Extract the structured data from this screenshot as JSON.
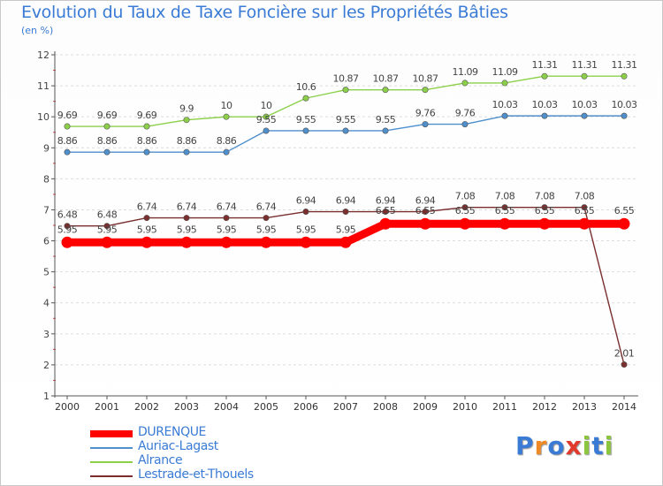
{
  "header": {
    "title": "Evolution du Taux de Taxe Foncière sur les Propriétés Bâties",
    "unit": "(en %)"
  },
  "logo": {
    "letters": [
      "P",
      "r",
      "o",
      "x",
      "i",
      "t",
      "i"
    ],
    "colors": [
      "#3a7bd5",
      "#f08a24",
      "#3a7bd5",
      "#e23b2e",
      "#8cc63f",
      "#3a7bd5",
      "#8cc63f"
    ]
  },
  "chart_data": {
    "type": "line",
    "title": "Evolution du Taux de Taxe Foncière sur les Propriétés Bâties",
    "ylabel": "(en %)",
    "xlabel": "",
    "x": [
      2000,
      2001,
      2002,
      2003,
      2004,
      2005,
      2006,
      2007,
      2008,
      2009,
      2010,
      2011,
      2012,
      2013,
      2014
    ],
    "ylim": [
      1,
      12
    ],
    "yticks": [
      1,
      2,
      3,
      4,
      5,
      6,
      7,
      8,
      9,
      10,
      11,
      12
    ],
    "grid": "horizontal dashed",
    "legend_position": "bottom-left",
    "series": [
      {
        "name": "DURENQUE",
        "color": "#ff0000",
        "values": [
          5.95,
          5.95,
          5.95,
          5.95,
          5.95,
          5.95,
          5.95,
          5.95,
          6.55,
          6.55,
          6.55,
          6.55,
          6.55,
          6.55,
          6.55
        ],
        "labels": [
          "5.95",
          "5.95",
          "5.95",
          "5.95",
          "5.95",
          "5.95",
          "5.95",
          "5.95",
          "6.55",
          "6.55",
          "6.55",
          "6.55",
          "6.55",
          "6.55",
          "6.55"
        ]
      },
      {
        "name": "Auriac-Lagast",
        "color": "#4f8fcc",
        "values": [
          8.86,
          8.86,
          8.86,
          8.86,
          8.86,
          9.55,
          9.55,
          9.55,
          9.55,
          9.76,
          9.76,
          10.03,
          10.03,
          10.03,
          10.03
        ],
        "labels": [
          "8.86",
          "8.86",
          "8.86",
          "8.86",
          "8.86",
          "9.55",
          "9.55",
          "9.55",
          "9.55",
          "9.76",
          "9.76",
          "10.03",
          "10.03",
          "10.03",
          "10.03"
        ]
      },
      {
        "name": "Alrance",
        "color": "#8cd04a",
        "values": [
          9.69,
          9.69,
          9.69,
          9.9,
          10,
          10,
          10.6,
          10.87,
          10.87,
          10.87,
          11.09,
          11.09,
          11.31,
          11.31,
          11.31
        ],
        "labels": [
          "9.69",
          "9.69",
          "9.69",
          "9.9",
          "10",
          "10",
          "10.6",
          "10.87",
          "10.87",
          "10.87",
          "11.09",
          "11.09",
          "11.31",
          "11.31",
          "11.31"
        ]
      },
      {
        "name": "Lestrade-et-Thouels",
        "color": "#7a2e2e",
        "values": [
          6.48,
          6.48,
          6.74,
          6.74,
          6.74,
          6.74,
          6.94,
          6.94,
          6.94,
          6.94,
          7.08,
          7.08,
          7.08,
          7.08,
          2.01
        ],
        "labels": [
          "6.48",
          "6.48",
          "6.74",
          "6.74",
          "6.74",
          "6.74",
          "6.94",
          "6.94",
          "6.94",
          "6.94",
          "7.08",
          "7.08",
          "7.08",
          "7.08",
          "2.01"
        ]
      }
    ]
  }
}
